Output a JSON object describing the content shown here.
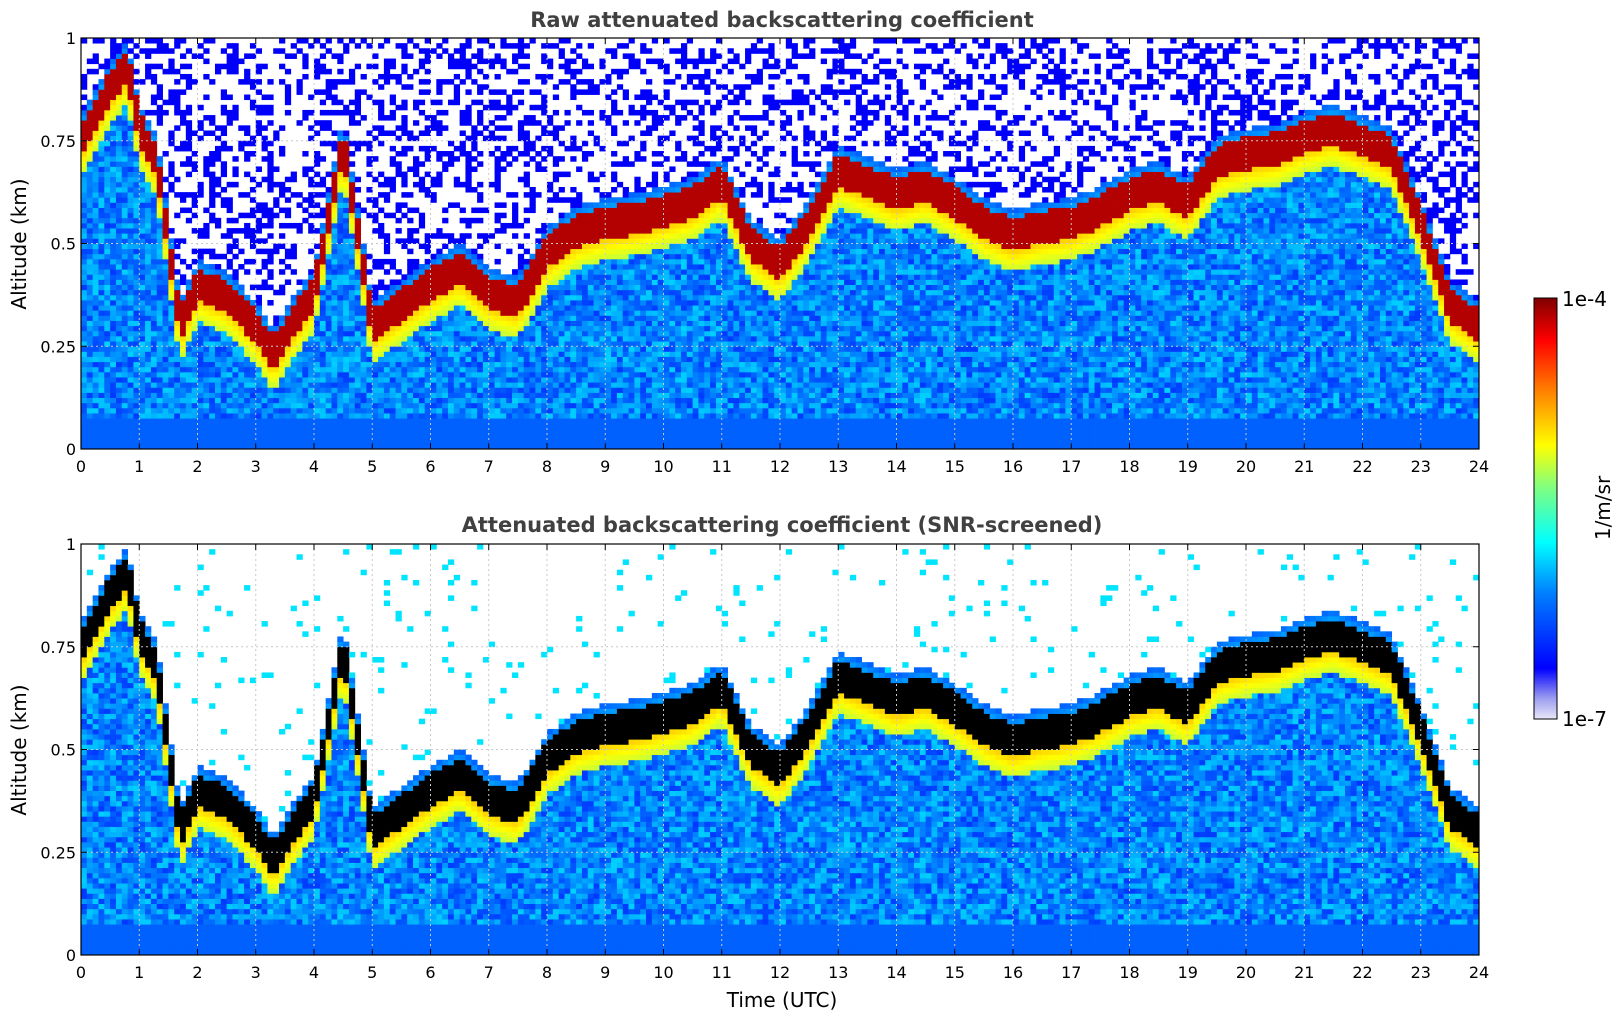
{
  "chart_data": [
    {
      "type": "heatmap",
      "title": "Raw attenuated backscattering coefficient",
      "xlabel": "",
      "ylabel": "Altitude (km)",
      "xlim": [
        0,
        24
      ],
      "ylim": [
        0,
        1
      ],
      "xticks": [
        0,
        1,
        2,
        3,
        4,
        5,
        6,
        7,
        8,
        9,
        10,
        11,
        12,
        13,
        14,
        15,
        16,
        17,
        18,
        19,
        20,
        21,
        22,
        23,
        24
      ],
      "yticks": [
        0,
        0.25,
        0.5,
        0.75,
        1
      ],
      "ytick_labels": [
        "0",
        "0.25",
        "0.5",
        "0.75",
        "1"
      ],
      "grid": true,
      "noise_speckle": true,
      "dominant_layer_altitude_km": {
        "time_utc": [
          0,
          0.5,
          0.8,
          1.0,
          1.3,
          1.7,
          2.0,
          2.5,
          3.0,
          3.3,
          3.6,
          4.0,
          4.5,
          5.0,
          5.5,
          6.0,
          6.5,
          7.0,
          7.5,
          8.0,
          8.5,
          9.0,
          9.5,
          10.0,
          10.5,
          11.0,
          11.5,
          12.0,
          12.5,
          13.0,
          13.5,
          14.0,
          14.5,
          15.0,
          15.5,
          16.0,
          16.5,
          17.0,
          17.5,
          18.0,
          18.5,
          19.0,
          19.5,
          20.0,
          20.5,
          21.0,
          21.5,
          22.0,
          22.5,
          23.0,
          23.5,
          24.0
        ],
        "altitude_km": [
          0.75,
          0.88,
          0.93,
          0.78,
          0.7,
          0.3,
          0.4,
          0.37,
          0.3,
          0.23,
          0.3,
          0.38,
          0.75,
          0.3,
          0.35,
          0.4,
          0.44,
          0.38,
          0.36,
          0.48,
          0.53,
          0.55,
          0.56,
          0.58,
          0.6,
          0.65,
          0.5,
          0.45,
          0.55,
          0.68,
          0.65,
          0.62,
          0.64,
          0.6,
          0.55,
          0.52,
          0.54,
          0.55,
          0.58,
          0.62,
          0.64,
          0.6,
          0.7,
          0.72,
          0.73,
          0.76,
          0.78,
          0.75,
          0.72,
          0.55,
          0.35,
          0.3
        ]
      }
    },
    {
      "type": "heatmap",
      "title": "Attenuated backscattering coefficient (SNR-screened)",
      "xlabel": "Time (UTC)",
      "ylabel": "Altitude (km)",
      "xlim": [
        0,
        24
      ],
      "ylim": [
        0,
        1
      ],
      "xticks": [
        0,
        1,
        2,
        3,
        4,
        5,
        6,
        7,
        8,
        9,
        10,
        11,
        12,
        13,
        14,
        15,
        16,
        17,
        18,
        19,
        20,
        21,
        22,
        23,
        24
      ],
      "yticks": [
        0,
        0.25,
        0.5,
        0.75,
        1
      ],
      "ytick_labels": [
        "0",
        "0.25",
        "0.5",
        "0.75",
        "1"
      ],
      "grid": true,
      "saturated_color": "#000000",
      "same_layer_as_raw": true
    }
  ],
  "colorbar": {
    "label": "1/m/sr",
    "min_label": "1e-7",
    "max_label": "1e-4",
    "colormap": "jet",
    "low_end_color": "#e8e8f8"
  },
  "colors": {
    "background": "#ffffff",
    "grid": "#c8c8c8",
    "title": "#404040",
    "saturated": "#000000"
  }
}
